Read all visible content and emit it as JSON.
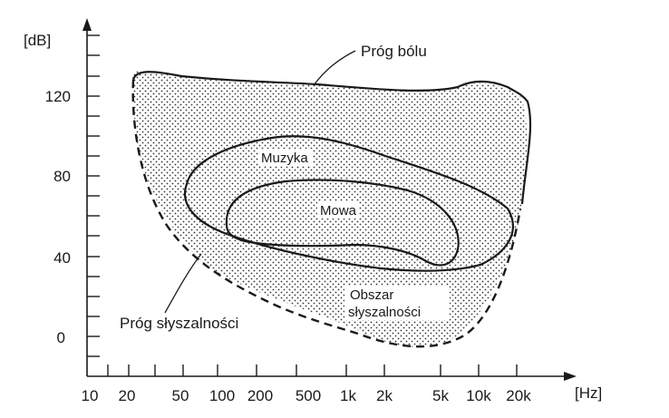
{
  "diagram": {
    "y_axis_unit": "[dB]",
    "x_axis_unit": "[Hz]",
    "y_ticks": [
      {
        "label": "0",
        "db": 0
      },
      {
        "label": "40",
        "db": 40
      },
      {
        "label": "80",
        "db": 80
      },
      {
        "label": "120",
        "db": 120
      }
    ],
    "x_ticks": [
      "10",
      "20",
      "50",
      "100",
      "200",
      "500",
      "1k",
      "2k",
      "5k",
      "10k",
      "20k"
    ],
    "regions": {
      "pain_threshold": "Próg bólu",
      "hearing_threshold": "Próg słyszalności",
      "music": "Muzyka",
      "speech": "Mowa",
      "audible_area_line1": "Obszar",
      "audible_area_line2": "słyszalności"
    }
  }
}
